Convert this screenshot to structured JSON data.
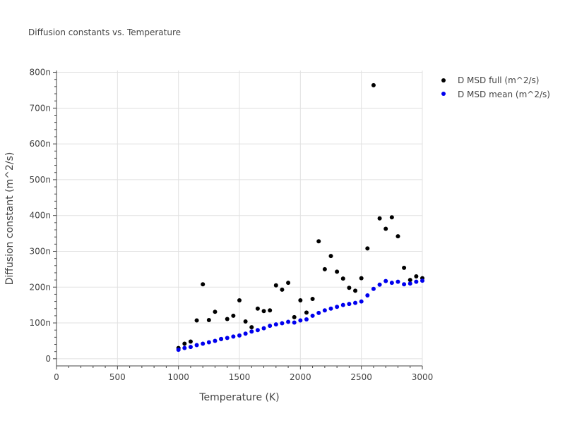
{
  "chart_data": {
    "type": "scatter",
    "title": "Diffusion constants vs. Temperature",
    "xlabel": "Temperature (K)",
    "ylabel": "Diffusion constant (m^2/s)",
    "xlim": [
      0,
      3000
    ],
    "ylim": [
      -20,
      805
    ],
    "xticks": [
      0,
      500,
      1000,
      1500,
      2000,
      2500,
      3000
    ],
    "xtick_labels": [
      "0",
      "500",
      "1000",
      "1500",
      "2000",
      "2500",
      "3000"
    ],
    "yticks": [
      0,
      100,
      200,
      300,
      400,
      500,
      600,
      700,
      800
    ],
    "ytick_labels": [
      "0",
      "100n",
      "200n",
      "300n",
      "400n",
      "500n",
      "600n",
      "700n",
      "800n"
    ],
    "legend_position": "top-right",
    "series": [
      {
        "name": "D MSD full (m^2/s)",
        "color": "#000000",
        "x": [
          1000,
          1050,
          1100,
          1150,
          1200,
          1250,
          1300,
          1350,
          1400,
          1450,
          1500,
          1550,
          1600,
          1650,
          1700,
          1750,
          1800,
          1850,
          1900,
          1950,
          2000,
          2050,
          2100,
          2150,
          2200,
          2250,
          2300,
          2350,
          2400,
          2450,
          2500,
          2550,
          2600,
          2650,
          2700,
          2750,
          2800,
          2850,
          2900,
          2950,
          3000
        ],
        "y": [
          30,
          42,
          48,
          107,
          208,
          108,
          131,
          55,
          111,
          120,
          163,
          104,
          88,
          140,
          133,
          135,
          205,
          193,
          212,
          116,
          163,
          129,
          167,
          328,
          250,
          287,
          243,
          224,
          198,
          190,
          225,
          308,
          764,
          392,
          363,
          395,
          342,
          254,
          220,
          230,
          225
        ]
      },
      {
        "name": "D MSD mean (m^2/s)",
        "color": "#0000ee",
        "x": [
          1000,
          1050,
          1100,
          1150,
          1200,
          1250,
          1300,
          1350,
          1400,
          1450,
          1500,
          1550,
          1600,
          1650,
          1700,
          1750,
          1800,
          1850,
          1900,
          1950,
          2000,
          2050,
          2100,
          2150,
          2200,
          2250,
          2300,
          2350,
          2400,
          2450,
          2500,
          2550,
          2600,
          2650,
          2700,
          2750,
          2800,
          2850,
          2900,
          2950,
          3000
        ],
        "y": [
          25,
          30,
          33,
          38,
          42,
          46,
          50,
          55,
          58,
          62,
          65,
          70,
          76,
          80,
          85,
          92,
          96,
          99,
          103,
          101,
          107,
          110,
          120,
          128,
          135,
          140,
          145,
          150,
          153,
          156,
          160,
          177,
          195,
          207,
          217,
          212,
          215,
          208,
          210,
          215,
          218
        ]
      }
    ]
  }
}
